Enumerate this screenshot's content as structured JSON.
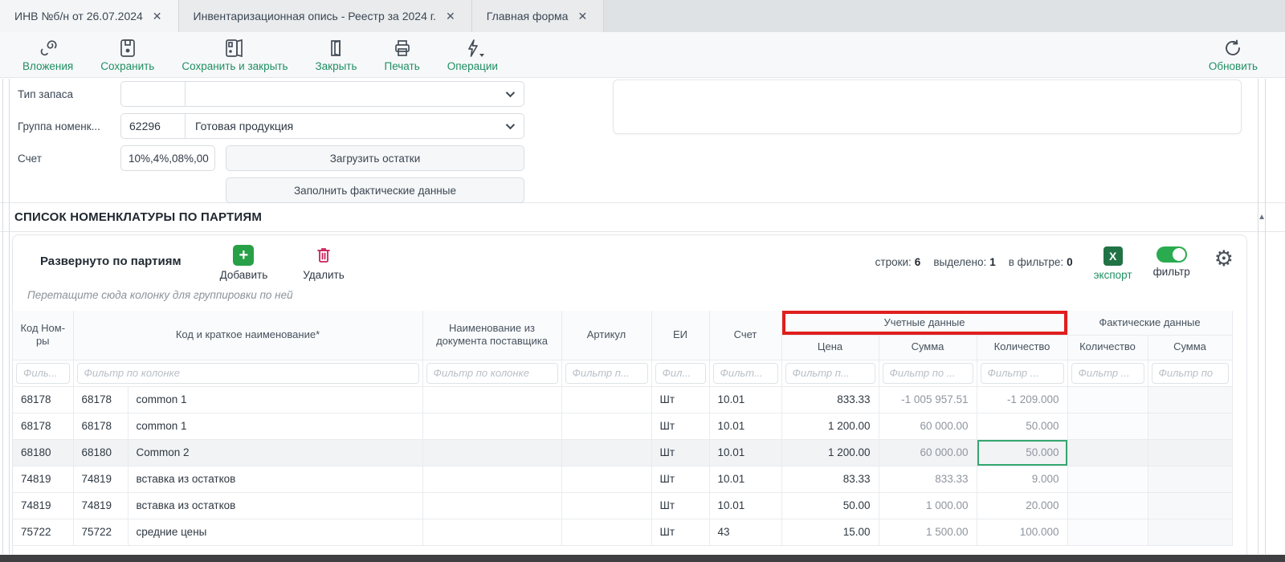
{
  "tabs": [
    {
      "label": "ИНВ №б/н от 26.07.2024",
      "active": true
    },
    {
      "label": "Инвентаризационная опись - Реестр за 2024 г.",
      "active": false
    },
    {
      "label": "Главная форма",
      "active": false
    }
  ],
  "toolbar": {
    "buttons": [
      {
        "label": "Вложения",
        "icon": "paperclip-icon"
      },
      {
        "label": "Сохранить",
        "icon": "save-icon"
      },
      {
        "label": "Сохранить и закрыть",
        "icon": "save-close-icon"
      },
      {
        "label": "Закрыть",
        "icon": "door-icon"
      },
      {
        "label": "Печать",
        "icon": "printer-icon"
      },
      {
        "label": "Операции",
        "icon": "lightning-icon"
      }
    ],
    "refresh_label": "Обновить"
  },
  "form": {
    "fields": [
      {
        "label": "Тип запаса",
        "code": "",
        "value": ""
      },
      {
        "label": "Группа номенк...",
        "code": "62296",
        "value": "Готовая продукция"
      },
      {
        "label": "Счет",
        "value": "10%,4%,08%,00"
      }
    ],
    "load_button": "Загрузить остатки",
    "fill_button": "Заполнить фактические данные"
  },
  "section": {
    "title": "СПИСОК НОМЕНКЛАТУРЫ ПО ПАРТИЯМ"
  },
  "grid": {
    "mode_label": "Развернуто по партиям",
    "add_label": "Добавить",
    "delete_label": "Удалить",
    "counters": [
      {
        "label": "строки:",
        "value": "6"
      },
      {
        "label": "выделено:",
        "value": "1"
      },
      {
        "label": "в фильтре:",
        "value": "0"
      }
    ],
    "export_label": "экспорт",
    "filter_label": "фильтр",
    "group_hint": "Перетащите сюда колонку для группировки по ней",
    "header": {
      "kod": "Код Ном-ры",
      "code_name": "Код и краткое наименование*",
      "supplier": "Наименование из документа поставщика",
      "artikul": "Артикул",
      "ei": "ЕИ",
      "schet": "Счет",
      "cena": "Цена",
      "summa": "Сумма",
      "kolvo": "Количество",
      "kolvo_fact": "Количество",
      "summa_fact": "Сумма",
      "group_accounting": "Учетные данные",
      "group_actual": "Фактические данные"
    },
    "filters": [
      "Филь...",
      "Фильтр по колонке",
      "Фильтр по колонке",
      "Фильтр п...",
      "Фил...",
      "Фильт...",
      "Фильтр п...",
      "Фильтр по ...",
      "Фильтр ...",
      "Фильтр ...",
      "Фильтр по"
    ],
    "rows": [
      {
        "cells": [
          "68178",
          "68178",
          "common 1",
          "",
          "",
          "Шт",
          "10.01",
          "833.33",
          "-1 005 957.51",
          "-1 209.000",
          "",
          ""
        ],
        "selected": false
      },
      {
        "cells": [
          "68178",
          "68178",
          "common 1",
          "",
          "",
          "Шт",
          "10.01",
          "1 200.00",
          "60 000.00",
          "50.000",
          "",
          ""
        ],
        "selected": false
      },
      {
        "cells": [
          "68180",
          "68180",
          "Common 2",
          "",
          "",
          "Шт",
          "10.01",
          "1 200.00",
          "60 000.00",
          "50.000",
          "",
          ""
        ],
        "selected": true,
        "selected_cell": 9
      },
      {
        "cells": [
          "74819",
          "74819",
          "вставка из остатков",
          "",
          "",
          "Шт",
          "10.01",
          "83.33",
          "833.33",
          "9.000",
          "",
          ""
        ],
        "selected": false
      },
      {
        "cells": [
          "74819",
          "74819",
          "вставка из остатков",
          "",
          "",
          "Шт",
          "10.01",
          "50.00",
          "1 000.00",
          "20.000",
          "",
          ""
        ],
        "selected": false
      },
      {
        "cells": [
          "75722",
          "75722",
          "средние цены",
          "",
          "",
          "Шт",
          "43",
          "15.00",
          "1 500.00",
          "100.000",
          "",
          ""
        ],
        "selected": false
      }
    ]
  },
  "colors": {
    "accent_green": "#1f8f63",
    "excel_green": "#217346",
    "toggle_green": "#2aab50",
    "add_green": "#28a047",
    "delete_red": "#c9235a",
    "annotation_red": "#e01e1e",
    "selected_cell_green": "#35a770"
  }
}
